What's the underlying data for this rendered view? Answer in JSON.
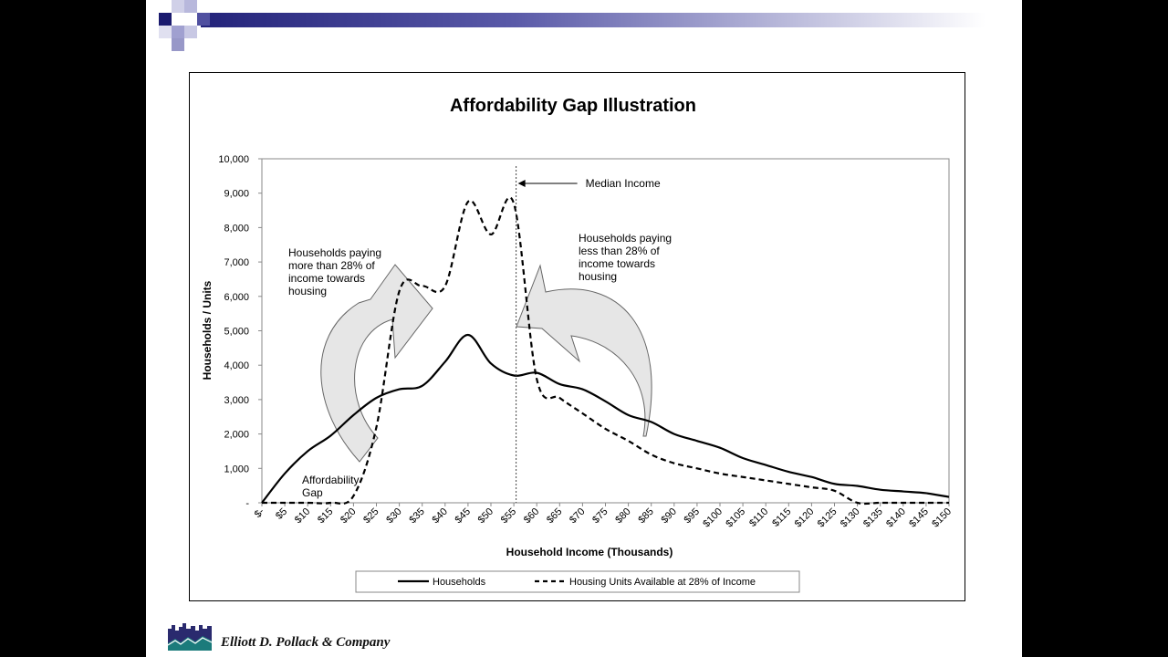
{
  "footer": {
    "company": "Elliott D. Pollack & Company"
  },
  "chart_data": {
    "type": "line",
    "title": "Affordability Gap Illustration",
    "xlabel": "Household Income (Thousands)",
    "ylabel": "Households / Units",
    "ylim": [
      0,
      10000
    ],
    "yticks": [
      0,
      1000,
      2000,
      3000,
      4000,
      5000,
      6000,
      7000,
      8000,
      9000,
      10000
    ],
    "ytick_labels": [
      "-",
      "1,000",
      "2,000",
      "3,000",
      "4,000",
      "5,000",
      "6,000",
      "7,000",
      "8,000",
      "9,000",
      "10,000"
    ],
    "categories": [
      "$-",
      "$5",
      "$10",
      "$15",
      "$20",
      "$25",
      "$30",
      "$35",
      "$40",
      "$45",
      "$50",
      "$55",
      "$60",
      "$65",
      "$70",
      "$75",
      "$80",
      "$85",
      "$90",
      "$95",
      "$100",
      "$105",
      "$110",
      "$115",
      "$120",
      "$125",
      "$130",
      "$135",
      "$140",
      "$145",
      "$150"
    ],
    "series": [
      {
        "name": "Households",
        "style": "solid",
        "values": [
          0,
          850,
          1500,
          1950,
          2550,
          3050,
          3300,
          3400,
          4100,
          4880,
          4050,
          3700,
          3780,
          3450,
          3300,
          2950,
          2550,
          2350,
          2000,
          1800,
          1600,
          1300,
          1100,
          900,
          750,
          550,
          490,
          380,
          330,
          280,
          170
        ]
      },
      {
        "name": "Housing Units Available at 28% of Income",
        "style": "dashed",
        "values": [
          0,
          0,
          0,
          0,
          200,
          2200,
          6150,
          6300,
          6300,
          8750,
          7800,
          8700,
          3600,
          3050,
          2600,
          2150,
          1800,
          1400,
          1150,
          1000,
          850,
          750,
          650,
          550,
          450,
          350,
          0,
          0,
          0,
          0,
          0
        ]
      }
    ],
    "grid": false,
    "legend_position": "bottom",
    "annotations": {
      "median": {
        "label": "Median Income",
        "x_index": 11.1
      },
      "left_text": [
        "Households paying",
        "more than 28% of",
        "income towards",
        "housing"
      ],
      "right_text": [
        "Households paying",
        "less than 28% of",
        "income towards",
        "housing"
      ],
      "gap_text": [
        "Affordability",
        "Gap"
      ]
    },
    "colors": {
      "line": "#000000",
      "arrow_fill": "#e6e6e6",
      "arrow_stroke": "#666666"
    }
  },
  "branding": {
    "banner_dark": "#1a1a6e",
    "banner_light": "#9090c8"
  }
}
